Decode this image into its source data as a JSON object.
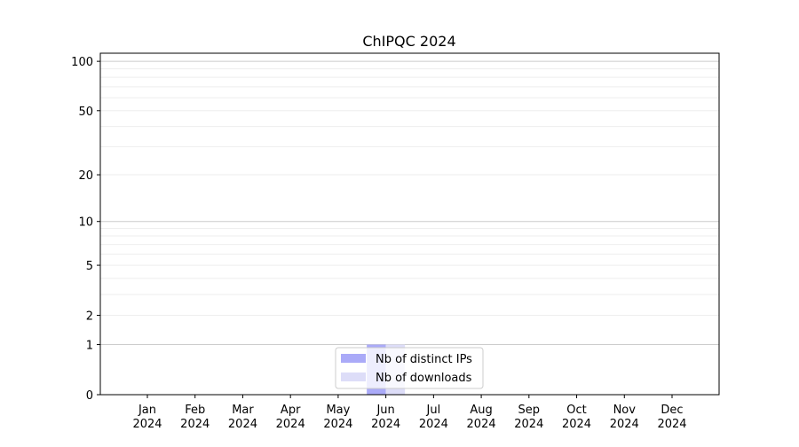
{
  "chart_data": {
    "type": "bar",
    "title": "ChIPQC 2024",
    "xlabel": "",
    "ylabel": "",
    "yscale": "log(1+y)",
    "ylim": [
      0,
      112
    ],
    "yticks": [
      0,
      1,
      2,
      5,
      10,
      20,
      50,
      100
    ],
    "ytick_labels": [
      "0",
      "1",
      "2",
      "5",
      "10",
      "20",
      "50",
      "100"
    ],
    "categories": [
      "Jan\n2024",
      "Feb\n2024",
      "Mar\n2024",
      "Apr\n2024",
      "May\n2024",
      "Jun\n2024",
      "Jul\n2024",
      "Aug\n2024",
      "Sep\n2024",
      "Oct\n2024",
      "Nov\n2024",
      "Dec\n2024"
    ],
    "month_labels": [
      "Jan",
      "Feb",
      "Mar",
      "Apr",
      "May",
      "Jun",
      "Jul",
      "Aug",
      "Sep",
      "Oct",
      "Nov",
      "Dec"
    ],
    "year_label": "2024",
    "series": [
      {
        "name": "Nb of distinct IPs",
        "color": "#aaaaf8",
        "values": [
          0,
          0,
          0,
          0,
          0,
          1,
          0,
          0,
          0,
          0,
          0,
          0
        ]
      },
      {
        "name": "Nb of downloads",
        "color": "#ddddf8",
        "values": [
          0,
          0,
          0,
          0,
          0,
          1,
          0,
          0,
          0,
          0,
          0,
          0
        ]
      }
    ],
    "grid": true,
    "legend_placement": "bottom-center"
  }
}
